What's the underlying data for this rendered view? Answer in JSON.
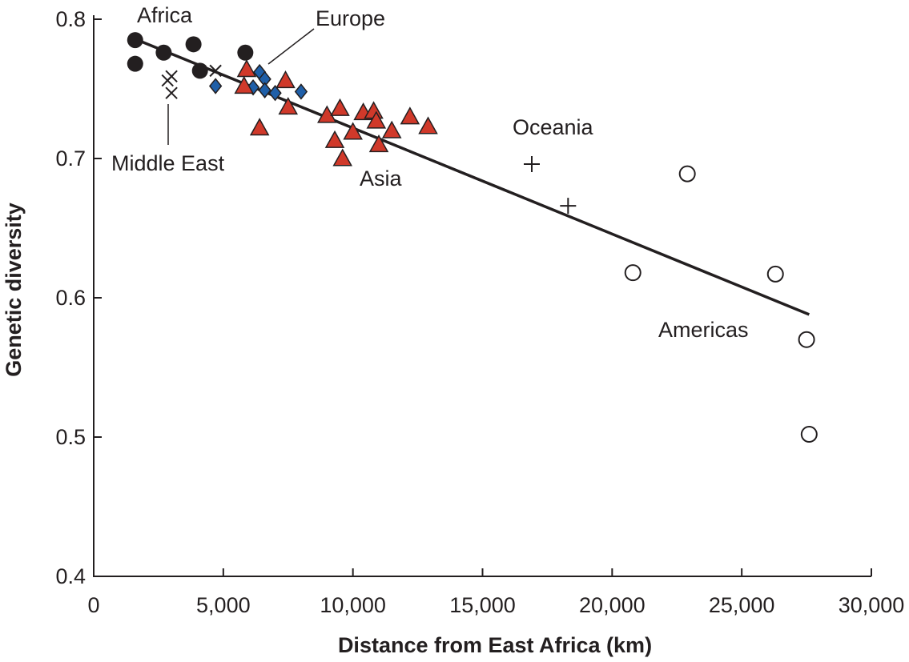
{
  "chart_data": {
    "type": "scatter",
    "title": "",
    "xlabel": "Distance from East Africa (km)",
    "ylabel": "Genetic diversity",
    "xlim": [
      0,
      30000
    ],
    "ylim": [
      0.4,
      0.8
    ],
    "x_ticks": [
      0,
      5000,
      10000,
      15000,
      20000,
      25000,
      30000
    ],
    "x_tick_labels": [
      "0",
      "5,000",
      "10,000",
      "15,000",
      "20,000",
      "25,000",
      "30,000"
    ],
    "y_ticks": [
      0.4,
      0.5,
      0.6,
      0.7,
      0.8
    ],
    "y_tick_labels": [
      "0.4",
      "0.5",
      "0.6",
      "0.7",
      "0.8"
    ],
    "grid": false,
    "legend": "none",
    "series": [
      {
        "name": "Africa",
        "marker": "filled-circle",
        "color": "#231f20",
        "points": [
          [
            1600,
            0.785
          ],
          [
            1600,
            0.768
          ],
          [
            2700,
            0.776
          ],
          [
            3850,
            0.782
          ],
          [
            4100,
            0.763
          ],
          [
            5850,
            0.776
          ]
        ]
      },
      {
        "name": "Middle East",
        "marker": "x",
        "color": "#231f20",
        "points": [
          [
            2850,
            0.756
          ],
          [
            3000,
            0.759
          ],
          [
            3000,
            0.747
          ],
          [
            4700,
            0.763
          ]
        ]
      },
      {
        "name": "Europe",
        "marker": "diamond",
        "color": "#1f5fa8",
        "points": [
          [
            4700,
            0.752
          ],
          [
            6150,
            0.751
          ],
          [
            6400,
            0.762
          ],
          [
            6600,
            0.757
          ],
          [
            6600,
            0.749
          ],
          [
            7000,
            0.747
          ],
          [
            8000,
            0.748
          ]
        ]
      },
      {
        "name": "Asia",
        "marker": "triangle",
        "color": "#d0392a",
        "points": [
          [
            5800,
            0.752
          ],
          [
            5900,
            0.764
          ],
          [
            6400,
            0.722
          ],
          [
            7400,
            0.756
          ],
          [
            7500,
            0.737
          ],
          [
            9000,
            0.731
          ],
          [
            9300,
            0.713
          ],
          [
            9500,
            0.736
          ],
          [
            9600,
            0.7
          ],
          [
            10000,
            0.719
          ],
          [
            10400,
            0.733
          ],
          [
            10800,
            0.734
          ],
          [
            10900,
            0.727
          ],
          [
            11000,
            0.71
          ],
          [
            11500,
            0.72
          ],
          [
            12200,
            0.73
          ],
          [
            12900,
            0.723
          ]
        ]
      },
      {
        "name": "Oceania",
        "marker": "plus",
        "color": "#231f20",
        "points": [
          [
            16900,
            0.696
          ],
          [
            18300,
            0.666
          ]
        ]
      },
      {
        "name": "Americas",
        "marker": "open-circle",
        "color": "#231f20",
        "points": [
          [
            20800,
            0.618
          ],
          [
            22900,
            0.689
          ],
          [
            26300,
            0.617
          ],
          [
            27500,
            0.57
          ],
          [
            27600,
            0.502
          ]
        ]
      }
    ],
    "trendline": {
      "x": [
        1700,
        27600
      ],
      "y": [
        0.785,
        0.588
      ]
    },
    "annotations": [
      {
        "text": "Africa"
      },
      {
        "text": "Europe"
      },
      {
        "text": "Middle East"
      },
      {
        "text": "Asia"
      },
      {
        "text": "Oceania"
      },
      {
        "text": "Americas"
      }
    ]
  }
}
